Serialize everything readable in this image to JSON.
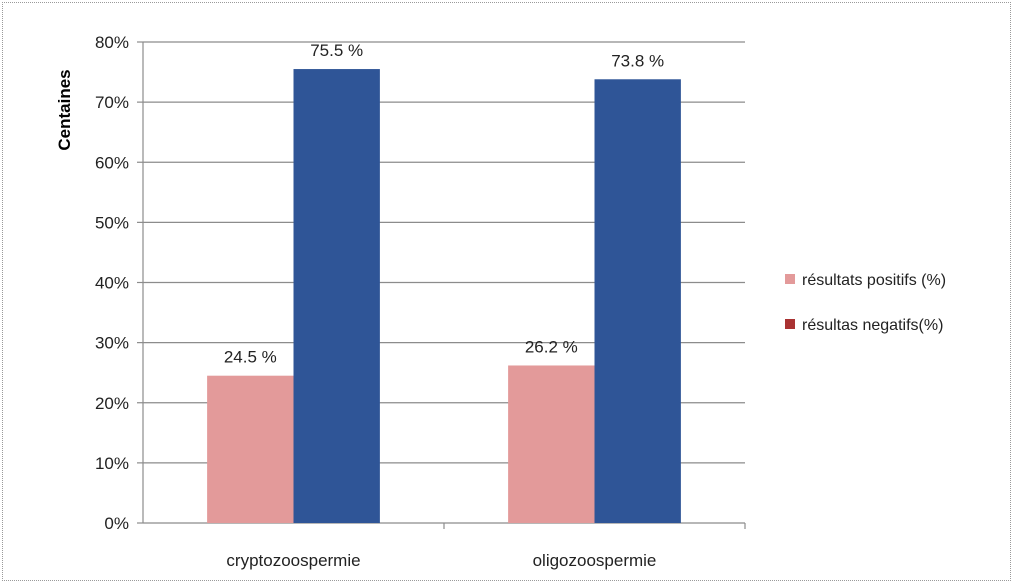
{
  "chart_data": {
    "type": "bar",
    "title": "",
    "xlabel": "",
    "ylabel": "Centaines",
    "ylim": [
      0,
      80
    ],
    "yticks": [
      "0%",
      "10%",
      "20%",
      "30%",
      "40%",
      "50%",
      "60%",
      "70%",
      "80%"
    ],
    "categories": [
      "cryptozoospermie",
      "oligozoospermie"
    ],
    "series": [
      {
        "name": "résultats positifs (%)",
        "values": [
          24.5,
          26.2
        ],
        "labels": [
          "24.5 %",
          "26.2 %"
        ],
        "color": "#e39a9a"
      },
      {
        "name": "résultas negatifs(%)",
        "values": [
          75.5,
          73.8
        ],
        "labels": [
          "75.5 %",
          "73.8 %"
        ],
        "color": "#2f5597"
      }
    ],
    "legend_position": "right",
    "legend_marker_colors": [
      "#e39a9a",
      "#a93232"
    ],
    "grid": true
  }
}
